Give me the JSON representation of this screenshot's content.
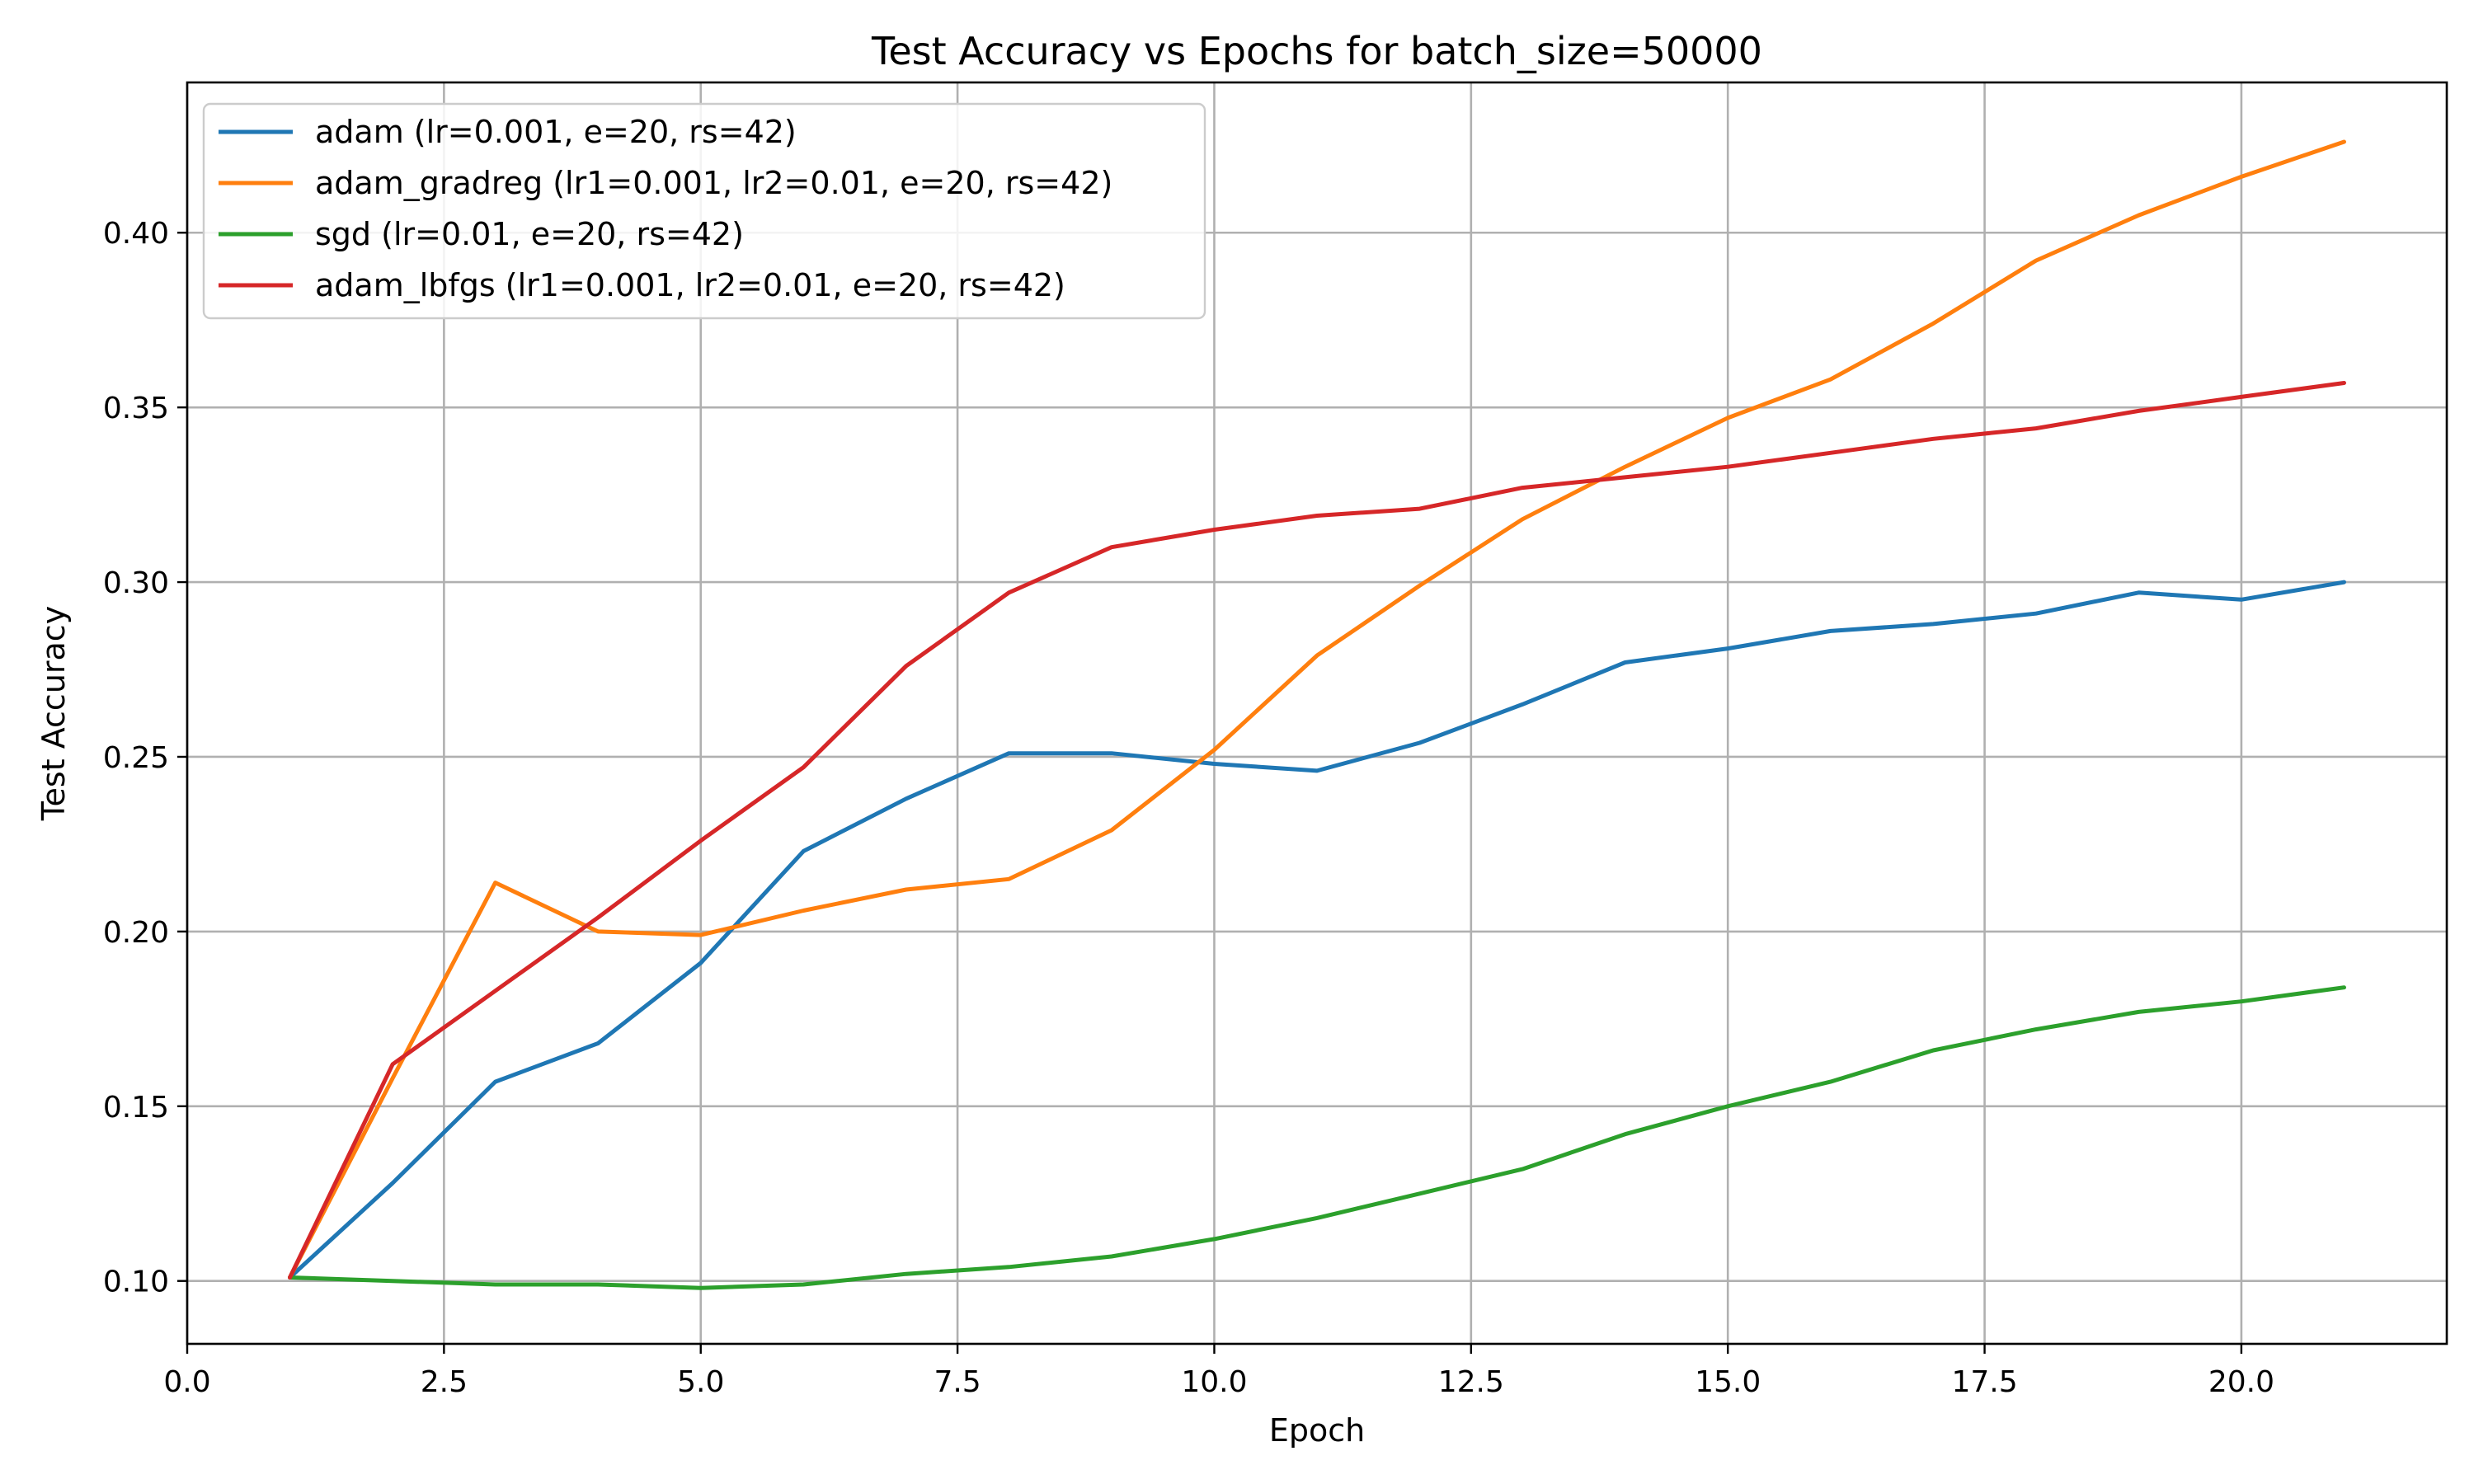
{
  "chart_data": {
    "type": "line",
    "title": "Test Accuracy vs Epochs for batch_size=50000",
    "xlabel": "Epoch",
    "ylabel": "Test Accuracy",
    "xlim": [
      0,
      22
    ],
    "ylim": [
      0.082,
      0.443
    ],
    "xticks": [
      0.0,
      2.5,
      5.0,
      7.5,
      10.0,
      12.5,
      15.0,
      17.5,
      20.0
    ],
    "xtick_labels": [
      "0.0",
      "2.5",
      "5.0",
      "7.5",
      "10.0",
      "12.5",
      "15.0",
      "17.5",
      "20.0"
    ],
    "yticks": [
      0.1,
      0.15,
      0.2,
      0.25,
      0.3,
      0.35,
      0.4
    ],
    "ytick_labels": [
      "0.10",
      "0.15",
      "0.20",
      "0.25",
      "0.30",
      "0.35",
      "0.40"
    ],
    "grid": true,
    "legend_position": "top-left",
    "x": [
      1,
      2,
      3,
      4,
      5,
      6,
      7,
      8,
      9,
      10,
      11,
      12,
      13,
      14,
      15,
      16,
      17,
      18,
      19,
      20,
      21
    ],
    "series": [
      {
        "name": "adam (lr=0.001, e=20, rs=42)",
        "color": "#1f77b4",
        "values": [
          0.101,
          0.128,
          0.157,
          0.168,
          0.191,
          0.223,
          0.238,
          0.251,
          0.251,
          0.248,
          0.246,
          0.254,
          0.265,
          0.277,
          0.281,
          0.286,
          0.288,
          0.291,
          0.297,
          0.295,
          0.3
        ]
      },
      {
        "name": "adam_gradreg (lr1=0.001, lr2=0.01, e=20, rs=42)",
        "color": "#ff7f0e",
        "values": [
          0.101,
          0.158,
          0.214,
          0.2,
          0.199,
          0.206,
          0.212,
          0.215,
          0.229,
          0.252,
          0.279,
          0.299,
          0.318,
          0.333,
          0.347,
          0.358,
          0.374,
          0.392,
          0.405,
          0.416,
          0.426
        ]
      },
      {
        "name": "sgd (lr=0.01, e=20, rs=42)",
        "color": "#2ca02c",
        "values": [
          0.101,
          0.1,
          0.099,
          0.099,
          0.098,
          0.099,
          0.102,
          0.104,
          0.107,
          0.112,
          0.118,
          0.125,
          0.132,
          0.142,
          0.15,
          0.157,
          0.166,
          0.172,
          0.177,
          0.18,
          0.184
        ]
      },
      {
        "name": "adam_lbfgs (lr1=0.001, lr2=0.01, e=20, rs=42)",
        "color": "#d62728",
        "values": [
          0.101,
          0.162,
          0.183,
          0.204,
          0.226,
          0.247,
          0.276,
          0.297,
          0.31,
          0.315,
          0.319,
          0.321,
          0.327,
          0.33,
          0.333,
          0.337,
          0.341,
          0.344,
          0.349,
          0.353,
          0.357
        ]
      }
    ]
  }
}
